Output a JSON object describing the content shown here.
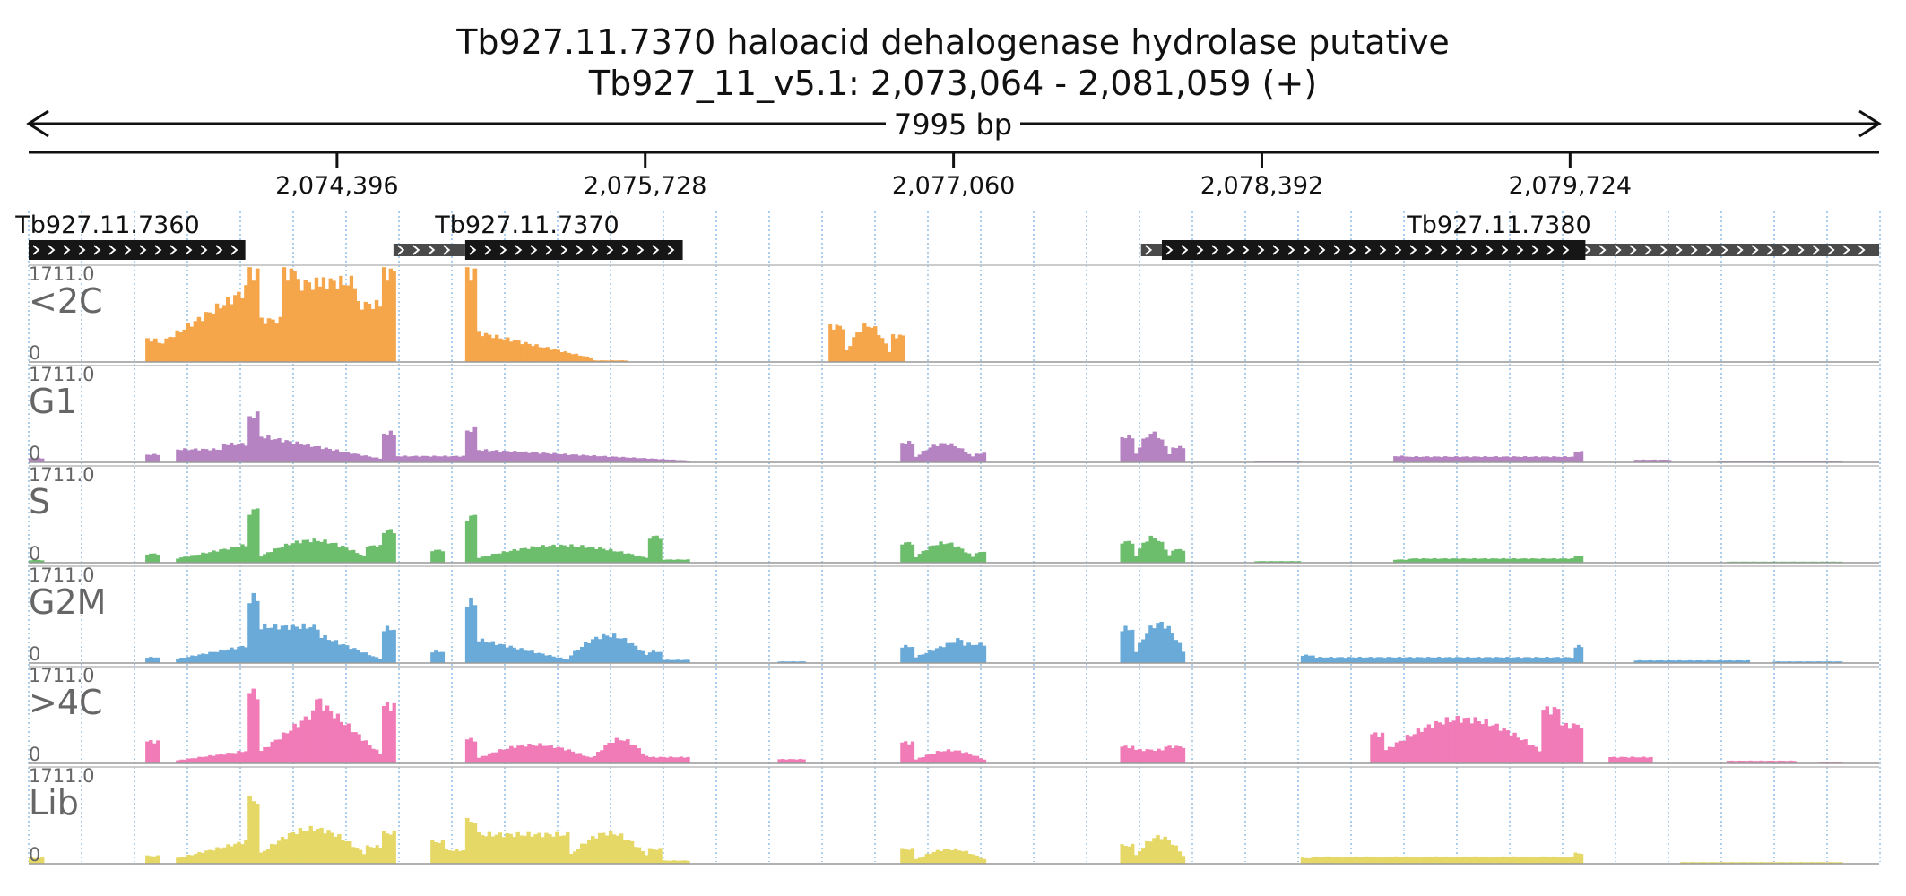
{
  "header": {
    "title": "Tb927.11.7370  haloacid dehalogenase hydrolase  putative",
    "location": "Tb927_11_v5.1: 2,073,064 - 2,081,059 (+)",
    "span_label": "7995 bp"
  },
  "chart_data": {
    "type": "area",
    "chromosome": "Tb927_11_v5.1",
    "strand": "+",
    "x_range": [
      2073064,
      2081059
    ],
    "ticks": [
      {
        "pos": 2074396,
        "label": "2,074,396"
      },
      {
        "pos": 2075728,
        "label": "2,075,728"
      },
      {
        "pos": 2077060,
        "label": "2,077,060"
      },
      {
        "pos": 2078392,
        "label": "2,078,392"
      },
      {
        "pos": 2079724,
        "label": "2,079,724"
      }
    ],
    "genes": [
      {
        "name": "Tb927.11.7360",
        "utr": [],
        "cds": [
          2073064,
          2074000
        ]
      },
      {
        "name": "Tb927.11.7370",
        "utr": [
          2074640,
          2074950
        ],
        "cds": [
          2074950,
          2075890
        ]
      },
      {
        "name": "Tb927.11.7380",
        "utr": [
          2078910,
          2081059
        ],
        "cds": [
          2077960,
          2079790
        ],
        "utr_left": [
          2077870,
          2077960
        ]
      }
    ],
    "y_range": [
      0,
      1711.0
    ],
    "y_max_label": "1711.0",
    "y_min_label": "0",
    "tracks": [
      {
        "name": "<2C",
        "color": "#f5a54a",
        "segments": [
          {
            "range": [
              2073568,
              2073619
            ],
            "peak": 430
          },
          {
            "range": [
              2073619,
              2074010
            ],
            "peak": 1380,
            "shape": "rise"
          },
          {
            "range": [
              2074010,
              2074060
            ],
            "peak": 1711
          },
          {
            "range": [
              2074060,
              2074160
            ],
            "peak": 800
          },
          {
            "range": [
              2074160,
              2074220
            ],
            "peak": 1711
          },
          {
            "range": [
              2074220,
              2074330
            ],
            "peak": 1500
          },
          {
            "range": [
              2074330,
              2074480
            ],
            "peak": 1530
          },
          {
            "range": [
              2074480,
              2074590
            ],
            "peak": 1100
          },
          {
            "range": [
              2074590,
              2074650
            ],
            "peak": 1711
          },
          {
            "range": [
              2074950,
              2075000
            ],
            "peak": 1711
          },
          {
            "range": [
              2075000,
              2075500
            ],
            "peak": 560,
            "shape": "decay"
          },
          {
            "range": [
              2075500,
              2075650
            ],
            "peak": 30
          },
          {
            "range": [
              2076520,
              2076590
            ],
            "peak": 680
          },
          {
            "range": [
              2076590,
              2076790
            ],
            "peak": 700,
            "shape": "hump"
          },
          {
            "range": [
              2076790,
              2076850
            ],
            "peak": 500
          }
        ]
      },
      {
        "name": "G1",
        "color": "#b683c2",
        "segments": [
          {
            "range": [
              2073064,
              2073130
            ],
            "peak": 80
          },
          {
            "range": [
              2073568,
              2073630
            ],
            "peak": 150
          },
          {
            "range": [
              2073700,
              2073900
            ],
            "peak": 250
          },
          {
            "range": [
              2073900,
              2074010
            ],
            "peak": 350
          },
          {
            "range": [
              2074010,
              2074060
            ],
            "peak": 900
          },
          {
            "range": [
              2074060,
              2074590
            ],
            "peak": 500,
            "shape": "decay"
          },
          {
            "range": [
              2074590,
              2074650
            ],
            "peak": 560
          },
          {
            "range": [
              2074650,
              2074950
            ],
            "peak": 120
          },
          {
            "range": [
              2074950,
              2075000
            ],
            "peak": 620
          },
          {
            "range": [
              2075000,
              2075920
            ],
            "peak": 240,
            "shape": "decay"
          },
          {
            "range": [
              2076830,
              2076890
            ],
            "peak": 380
          },
          {
            "range": [
              2076890,
              2077150
            ],
            "peak": 360,
            "shape": "hump"
          },
          {
            "range": [
              2077150,
              2077200
            ],
            "peak": 170
          },
          {
            "range": [
              2077780,
              2077840
            ],
            "peak": 490
          },
          {
            "range": [
              2077840,
              2078000
            ],
            "peak": 560,
            "shape": "hump"
          },
          {
            "range": [
              2078000,
              2078060
            ],
            "peak": 290
          },
          {
            "range": [
              2078360,
              2078560
            ],
            "peak": 20
          },
          {
            "range": [
              2078960,
              2079020
            ],
            "peak": 120
          },
          {
            "range": [
              2079020,
              2079740
            ],
            "peak": 110
          },
          {
            "range": [
              2079740,
              2079780
            ],
            "peak": 200
          },
          {
            "range": [
              2080000,
              2080160
            ],
            "peak": 50
          },
          {
            "range": [
              2080360,
              2080900
            ],
            "peak": 20
          }
        ]
      },
      {
        "name": "S",
        "color": "#6cbd6c",
        "segments": [
          {
            "range": [
              2073064,
              2073130
            ],
            "peak": 50
          },
          {
            "range": [
              2073568,
              2073630
            ],
            "peak": 170
          },
          {
            "range": [
              2073700,
              2074010
            ],
            "peak": 340,
            "shape": "rise"
          },
          {
            "range": [
              2074010,
              2074060
            ],
            "peak": 1000
          },
          {
            "range": [
              2074060,
              2074520
            ],
            "peak": 430,
            "shape": "hump"
          },
          {
            "range": [
              2074520,
              2074590
            ],
            "peak": 320
          },
          {
            "range": [
              2074590,
              2074650
            ],
            "peak": 620
          },
          {
            "range": [
              2074800,
              2074860
            ],
            "peak": 240
          },
          {
            "range": [
              2074950,
              2075000
            ],
            "peak": 880
          },
          {
            "range": [
              2075000,
              2075740
            ],
            "peak": 330,
            "shape": "hump"
          },
          {
            "range": [
              2075740,
              2075800
            ],
            "peak": 500
          },
          {
            "range": [
              2075800,
              2075920
            ],
            "peak": 60
          },
          {
            "range": [
              2076830,
              2076890
            ],
            "peak": 380
          },
          {
            "range": [
              2076890,
              2077150
            ],
            "peak": 380,
            "shape": "hump"
          },
          {
            "range": [
              2077150,
              2077200
            ],
            "peak": 200
          },
          {
            "range": [
              2077780,
              2077840
            ],
            "peak": 400
          },
          {
            "range": [
              2077840,
              2078000
            ],
            "peak": 490,
            "shape": "hump"
          },
          {
            "range": [
              2078000,
              2078060
            ],
            "peak": 250
          },
          {
            "range": [
              2078360,
              2078560
            ],
            "peak": 30
          },
          {
            "range": [
              2078960,
              2079020
            ],
            "peak": 60
          },
          {
            "range": [
              2079020,
              2079740
            ],
            "peak": 80
          },
          {
            "range": [
              2079740,
              2079780
            ],
            "peak": 130
          },
          {
            "range": [
              2080400,
              2080900
            ],
            "peak": 20
          }
        ]
      },
      {
        "name": "G2M",
        "color": "#6aaad9",
        "segments": [
          {
            "range": [
              2073568,
              2073630
            ],
            "peak": 110
          },
          {
            "range": [
              2073700,
              2074010
            ],
            "peak": 330,
            "shape": "rise"
          },
          {
            "range": [
              2074010,
              2074060
            ],
            "peak": 1240
          },
          {
            "range": [
              2074060,
              2074320
            ],
            "peak": 700
          },
          {
            "range": [
              2074320,
              2074590
            ],
            "peak": 520,
            "shape": "decay"
          },
          {
            "range": [
              2074590,
              2074650
            ],
            "peak": 660
          },
          {
            "range": [
              2074800,
              2074860
            ],
            "peak": 220
          },
          {
            "range": [
              2074950,
              2075000
            ],
            "peak": 1160
          },
          {
            "range": [
              2075000,
              2075400
            ],
            "peak": 450,
            "shape": "decay"
          },
          {
            "range": [
              2075400,
              2075740
            ],
            "peak": 530,
            "shape": "hump"
          },
          {
            "range": [
              2075740,
              2075800
            ],
            "peak": 220
          },
          {
            "range": [
              2075800,
              2075920
            ],
            "peak": 60
          },
          {
            "range": [
              2076300,
              2076420
            ],
            "peak": 30
          },
          {
            "range": [
              2076830,
              2076890
            ],
            "peak": 320
          },
          {
            "range": [
              2076890,
              2077100
            ],
            "peak": 470,
            "shape": "rise"
          },
          {
            "range": [
              2077100,
              2077200
            ],
            "peak": 360
          },
          {
            "range": [
              2077780,
              2077840
            ],
            "peak": 660
          },
          {
            "range": [
              2077840,
              2078060
            ],
            "peak": 760,
            "shape": "hump"
          },
          {
            "range": [
              2078560,
              2078620
            ],
            "peak": 150
          },
          {
            "range": [
              2078620,
              2079740
            ],
            "peak": 110
          },
          {
            "range": [
              2079740,
              2079780
            ],
            "peak": 320
          },
          {
            "range": [
              2080000,
              2080500
            ],
            "peak": 50
          },
          {
            "range": [
              2080600,
              2080900
            ],
            "peak": 30
          }
        ]
      },
      {
        "name": ">4C",
        "color": "#f07bb7",
        "segments": [
          {
            "range": [
              2073568,
              2073630
            ],
            "peak": 420
          },
          {
            "range": [
              2073700,
              2074010
            ],
            "peak": 240,
            "shape": "rise"
          },
          {
            "range": [
              2074010,
              2074060
            ],
            "peak": 1350
          },
          {
            "range": [
              2074060,
              2074300
            ],
            "peak": 960,
            "shape": "rise"
          },
          {
            "range": [
              2074300,
              2074590
            ],
            "peak": 1230,
            "shape": "decay"
          },
          {
            "range": [
              2074590,
              2074650
            ],
            "peak": 1100
          },
          {
            "range": [
              2074950,
              2075000
            ],
            "peak": 460
          },
          {
            "range": [
              2075000,
              2075500
            ],
            "peak": 360,
            "shape": "hump"
          },
          {
            "range": [
              2075500,
              2075740
            ],
            "peak": 460,
            "shape": "hump"
          },
          {
            "range": [
              2075740,
              2075920
            ],
            "peak": 120
          },
          {
            "range": [
              2076300,
              2076420
            ],
            "peak": 80
          },
          {
            "range": [
              2076830,
              2076890
            ],
            "peak": 400
          },
          {
            "range": [
              2076890,
              2077200
            ],
            "peak": 250,
            "shape": "hump"
          },
          {
            "range": [
              2077780,
              2077840
            ],
            "peak": 320
          },
          {
            "range": [
              2077840,
              2077970
            ],
            "peak": 260
          },
          {
            "range": [
              2077970,
              2078060
            ],
            "peak": 320
          },
          {
            "range": [
              2078860,
              2078920
            ],
            "peak": 560
          },
          {
            "range": [
              2078920,
              2079600
            ],
            "peak": 850,
            "shape": "hump"
          },
          {
            "range": [
              2079600,
              2079680
            ],
            "peak": 1030
          },
          {
            "range": [
              2079680,
              2079780
            ],
            "peak": 730
          },
          {
            "range": [
              2079890,
              2080080
            ],
            "peak": 120
          },
          {
            "range": [
              2080400,
              2080700
            ],
            "peak": 50
          },
          {
            "range": [
              2080800,
              2080900
            ],
            "peak": 30
          }
        ]
      },
      {
        "name": "Lib",
        "color": "#e5d866",
        "segments": [
          {
            "range": [
              2073064,
              2073130
            ],
            "peak": 110
          },
          {
            "range": [
              2073568,
              2073630
            ],
            "peak": 150
          },
          {
            "range": [
              2073700,
              2074010
            ],
            "peak": 430,
            "shape": "rise"
          },
          {
            "range": [
              2074010,
              2074060
            ],
            "peak": 1220
          },
          {
            "range": [
              2074060,
              2074520
            ],
            "peak": 670,
            "shape": "hump"
          },
          {
            "range": [
              2074520,
              2074590
            ],
            "peak": 330
          },
          {
            "range": [
              2074590,
              2074650
            ],
            "peak": 590
          },
          {
            "range": [
              2074800,
              2074860
            ],
            "peak": 420
          },
          {
            "range": [
              2074860,
              2074950
            ],
            "peak": 260
          },
          {
            "range": [
              2074950,
              2075000
            ],
            "peak": 820
          },
          {
            "range": [
              2075000,
              2075400
            ],
            "peak": 560
          },
          {
            "range": [
              2075400,
              2075740
            ],
            "peak": 590,
            "shape": "hump"
          },
          {
            "range": [
              2075740,
              2075800
            ],
            "peak": 280
          },
          {
            "range": [
              2075800,
              2075920
            ],
            "peak": 60
          },
          {
            "range": [
              2076830,
              2076890
            ],
            "peak": 280
          },
          {
            "range": [
              2076890,
              2077200
            ],
            "peak": 280,
            "shape": "hump"
          },
          {
            "range": [
              2077780,
              2077840
            ],
            "peak": 350
          },
          {
            "range": [
              2077840,
              2078060
            ],
            "peak": 520,
            "shape": "hump"
          },
          {
            "range": [
              2078560,
              2078620
            ],
            "peak": 110
          },
          {
            "range": [
              2078620,
              2079740
            ],
            "peak": 130
          },
          {
            "range": [
              2079740,
              2079780
            ],
            "peak": 200
          },
          {
            "range": [
              2080200,
              2080900
            ],
            "peak": 30
          }
        ]
      }
    ],
    "grid": "vertical-dotted"
  }
}
